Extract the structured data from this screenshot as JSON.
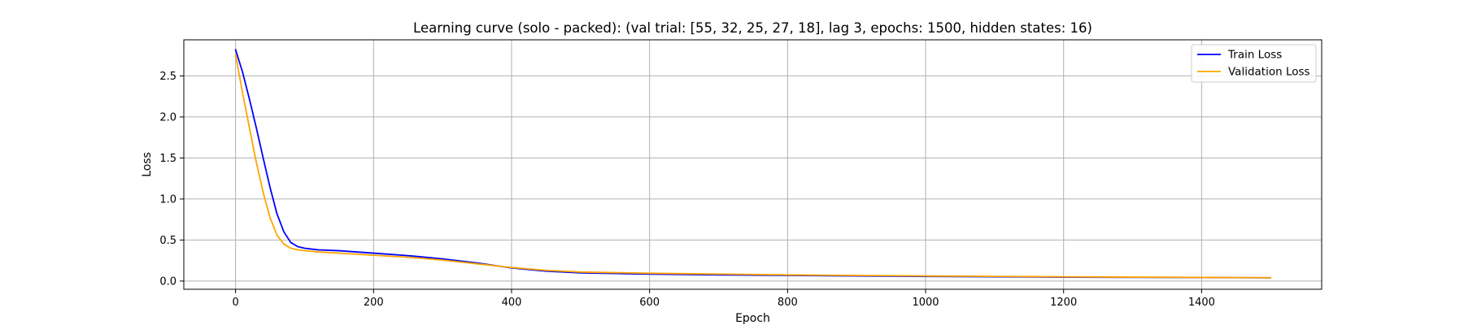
{
  "chart_data": {
    "type": "line",
    "title": "Learning curve (solo - packed): (val trial: [55, 32, 25, 27, 18], lag 3, epochs: 1500, hidden states: 16)",
    "xlabel": "Epoch",
    "ylabel": "Loss",
    "xlim": [
      -75,
      1574
    ],
    "ylim": [
      -0.1,
      2.94
    ],
    "xticks": [
      0,
      200,
      400,
      600,
      800,
      1000,
      1200,
      1400
    ],
    "yticks": [
      0.0,
      0.5,
      1.0,
      1.5,
      2.0,
      2.5
    ],
    "ytick_labels": [
      "0.0",
      "0.5",
      "1.0",
      "1.5",
      "2.0",
      "2.5"
    ],
    "grid": true,
    "legend_position": "top-right",
    "series": [
      {
        "name": "Train Loss",
        "color": "#0000ff",
        "x": [
          0,
          10,
          20,
          30,
          40,
          50,
          60,
          70,
          80,
          90,
          100,
          120,
          150,
          200,
          250,
          300,
          350,
          400,
          450,
          500,
          600,
          700,
          800,
          900,
          1000,
          1100,
          1200,
          1300,
          1400,
          1500
        ],
        "y": [
          2.82,
          2.55,
          2.22,
          1.87,
          1.5,
          1.14,
          0.82,
          0.6,
          0.47,
          0.42,
          0.4,
          0.38,
          0.37,
          0.34,
          0.31,
          0.27,
          0.22,
          0.16,
          0.12,
          0.1,
          0.085,
          0.075,
          0.068,
          0.062,
          0.056,
          0.052,
          0.048,
          0.045,
          0.042,
          0.04
        ]
      },
      {
        "name": "Validation Loss",
        "color": "#ffa500",
        "x": [
          0,
          10,
          20,
          30,
          40,
          50,
          60,
          70,
          80,
          90,
          100,
          120,
          150,
          200,
          250,
          300,
          350,
          400,
          450,
          500,
          600,
          700,
          800,
          900,
          1000,
          1100,
          1200,
          1300,
          1400,
          1500
        ],
        "y": [
          2.76,
          2.3,
          1.87,
          1.45,
          1.08,
          0.77,
          0.56,
          0.45,
          0.4,
          0.38,
          0.37,
          0.355,
          0.34,
          0.315,
          0.29,
          0.255,
          0.21,
          0.165,
          0.13,
          0.11,
          0.095,
          0.085,
          0.075,
          0.068,
          0.062,
          0.057,
          0.052,
          0.048,
          0.044,
          0.041
        ]
      }
    ]
  }
}
